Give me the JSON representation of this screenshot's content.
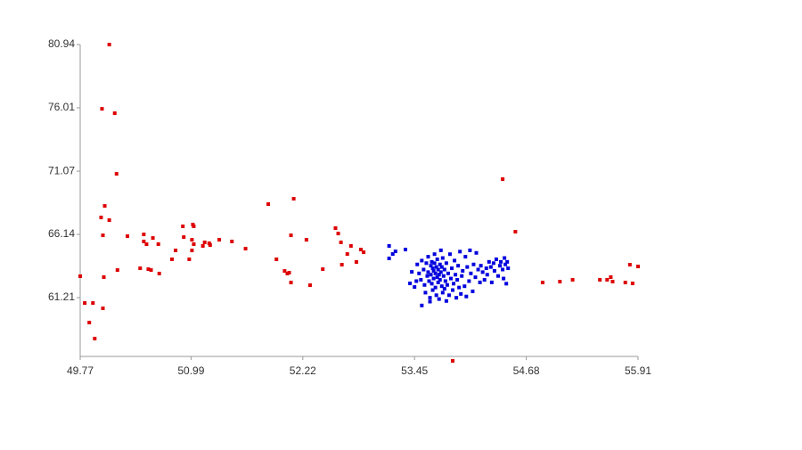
{
  "chart_data": {
    "type": "scatter",
    "xlim": [
      49.77,
      55.91
    ],
    "xticks": [
      49.77,
      50.99,
      52.22,
      53.45,
      54.68,
      55.91
    ],
    "ylim": [
      56.28,
      80.94
    ],
    "yticks": [
      61.21,
      66.14,
      71.07,
      76.01,
      80.94
    ],
    "series": [
      {
        "color": "#dd0000",
        "x": [
          49.77,
          49.82,
          49.87,
          49.91,
          49.93,
          50.01,
          50.0,
          50.02,
          50.04,
          50.03,
          50.02,
          50.09,
          50.09,
          50.15,
          50.17,
          50.18,
          50.29,
          50.43,
          50.47,
          50.47,
          50.5,
          50.52,
          50.55,
          50.57,
          50.63,
          50.64,
          50.78,
          50.82,
          50.9,
          50.91,
          50.97,
          51.01,
          51.02,
          51.0,
          51.0,
          51.02,
          51.12,
          51.14,
          51.19,
          51.2,
          51.3,
          51.44,
          51.59,
          51.84,
          51.93,
          52.02,
          52.05,
          52.07,
          52.09,
          52.12,
          52.09,
          52.26,
          52.3,
          52.44,
          52.58,
          52.61,
          52.64,
          52.65,
          52.71,
          52.75,
          52.81,
          52.86,
          52.89,
          53.87,
          54.42,
          54.56,
          54.86,
          55.05,
          55.19,
          55.49,
          55.57,
          55.61,
          55.63,
          55.77,
          55.82,
          55.85,
          55.91
        ],
        "values": [
          62.88,
          60.79,
          59.27,
          60.79,
          58.02,
          75.93,
          67.46,
          66.07,
          68.36,
          62.81,
          60.38,
          80.94,
          67.25,
          75.59,
          70.86,
          63.36,
          66.0,
          63.5,
          66.14,
          65.59,
          65.38,
          63.43,
          63.36,
          65.86,
          65.38,
          63.09,
          64.2,
          64.89,
          66.77,
          65.93,
          64.2,
          66.91,
          66.77,
          65.72,
          64.89,
          65.38,
          65.24,
          65.52,
          65.45,
          65.31,
          65.72,
          65.59,
          65.03,
          68.5,
          64.2,
          63.29,
          63.09,
          63.16,
          66.07,
          68.92,
          62.39,
          65.72,
          62.18,
          63.43,
          66.63,
          66.21,
          65.52,
          63.78,
          64.61,
          65.24,
          63.99,
          64.96,
          64.75,
          56.28,
          70.45,
          66.35,
          62.39,
          62.46,
          62.6,
          62.6,
          62.6,
          62.81,
          62.46,
          62.39,
          63.78,
          62.32,
          63.64
        ]
      },
      {
        "color": "#0000dd",
        "x": [
          53.17,
          53.21,
          53.24,
          53.17,
          53.35,
          53.42,
          53.4,
          53.45,
          53.48,
          53.5,
          53.52,
          53.53,
          53.55,
          53.56,
          53.57,
          53.58,
          53.59,
          53.6,
          53.6,
          53.61,
          53.62,
          53.62,
          53.63,
          53.63,
          53.64,
          53.64,
          53.65,
          53.65,
          53.66,
          53.66,
          53.67,
          53.67,
          53.68,
          53.68,
          53.69,
          53.69,
          53.7,
          53.7,
          53.71,
          53.71,
          53.72,
          53.72,
          53.73,
          53.73,
          53.74,
          53.74,
          53.75,
          53.75,
          53.76,
          53.76,
          53.77,
          53.78,
          53.78,
          53.79,
          53.8,
          53.8,
          53.81,
          53.82,
          53.83,
          53.84,
          53.85,
          53.86,
          53.87,
          53.88,
          53.89,
          53.9,
          53.91,
          53.92,
          53.93,
          53.94,
          53.95,
          53.96,
          53.97,
          53.98,
          54.0,
          54.01,
          54.02,
          54.03,
          54.05,
          54.06,
          54.07,
          54.09,
          54.1,
          54.12,
          54.13,
          54.15,
          54.17,
          54.18,
          54.2,
          54.22,
          54.24,
          54.25,
          54.27,
          54.29,
          54.3,
          54.32,
          54.33,
          54.35,
          54.37,
          54.39,
          54.4,
          54.42,
          54.43,
          54.45,
          54.46,
          54.48,
          54.47,
          54.44,
          53.47,
          53.53
        ],
        "values": [
          65.24,
          64.61,
          64.82,
          64.27,
          64.96,
          63.22,
          62.32,
          62.04,
          63.8,
          63.1,
          62.6,
          64.1,
          63.4,
          62.2,
          61.6,
          63.9,
          62.9,
          64.4,
          63.2,
          62.5,
          61.2,
          60.9,
          63.7,
          63.0,
          62.3,
          64.0,
          63.5,
          61.8,
          63.3,
          62.7,
          64.6,
          63.9,
          63.1,
          62.0,
          61.4,
          63.6,
          62.8,
          64.2,
          63.4,
          62.4,
          63.0,
          61.1,
          63.8,
          62.6,
          64.9,
          63.2,
          62.1,
          63.6,
          61.6,
          64.3,
          62.9,
          63.4,
          61.9,
          62.5,
          63.9,
          60.95,
          62.2,
          63.1,
          61.4,
          64.6,
          62.7,
          63.5,
          61.8,
          62.3,
          64.1,
          63.0,
          61.2,
          62.6,
          63.7,
          62.0,
          64.8,
          61.5,
          62.9,
          63.3,
          62.1,
          64.4,
          61.3,
          63.6,
          62.5,
          64.9,
          63.1,
          61.7,
          63.8,
          62.8,
          64.7,
          63.4,
          62.4,
          63.7,
          63.2,
          62.6,
          63.5,
          63.0,
          64.0,
          63.6,
          62.4,
          63.9,
          63.3,
          64.2,
          62.9,
          63.7,
          64.0,
          63.4,
          62.7,
          63.8,
          62.3,
          63.5,
          64.0,
          64.3,
          62.5,
          60.6
        ]
      }
    ]
  }
}
